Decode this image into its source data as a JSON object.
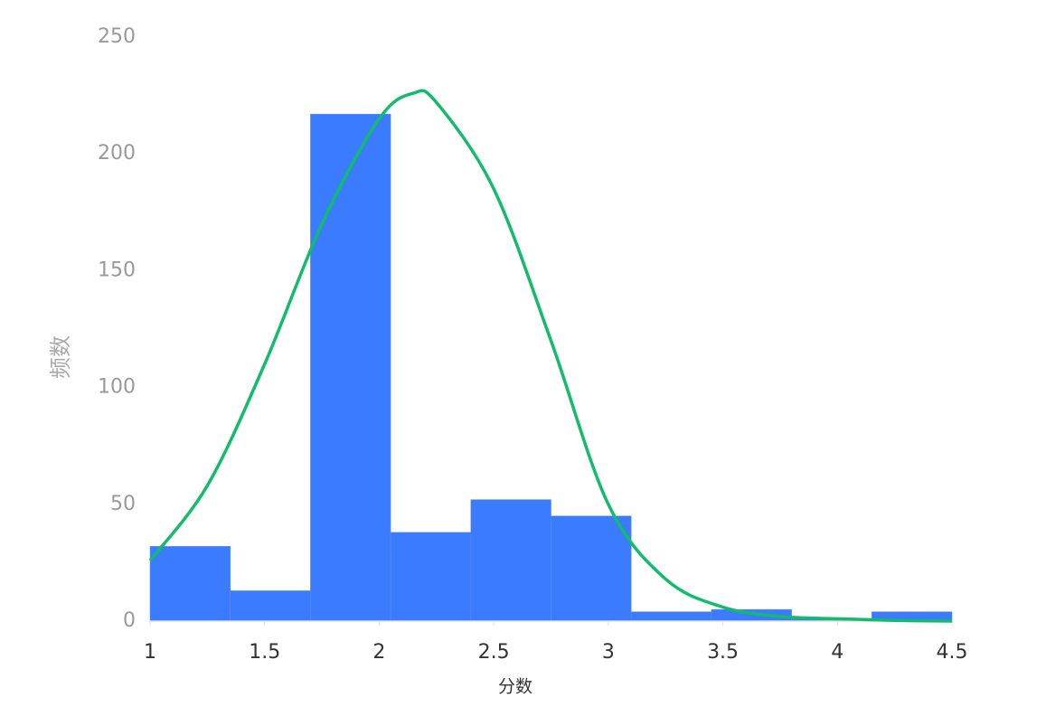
{
  "chart_data": {
    "type": "histogram",
    "x_label": "分数",
    "y_label": "频数",
    "bins": [
      1,
      1.35,
      1.7,
      2.05,
      2.4,
      2.75,
      3.1,
      3.45,
      3.8,
      4.15,
      4.5
    ],
    "values": [
      32,
      13,
      217,
      38,
      52,
      45,
      4,
      5,
      1,
      4
    ],
    "color": "#3a7bff",
    "curve": {
      "color": "#13bb6b",
      "x": [
        1,
        1.25,
        1.5,
        1.75,
        2,
        2.15,
        2.25,
        2.5,
        2.75,
        3,
        3.25,
        3.5,
        3.75,
        4,
        4.25,
        4.5
      ],
      "values": [
        26,
        58,
        110,
        170,
        215,
        226,
        222,
        185,
        120,
        50,
        18,
        6,
        2,
        1,
        0.3,
        0
      ]
    },
    "xlim": [
      1,
      4.5
    ],
    "xticks": [
      1,
      1.5,
      2,
      2.5,
      3,
      3.5,
      4,
      4.5
    ],
    "ylim": [
      0,
      250
    ],
    "yticks": [
      0,
      50,
      100,
      150,
      200,
      250
    ],
    "grid": false
  }
}
